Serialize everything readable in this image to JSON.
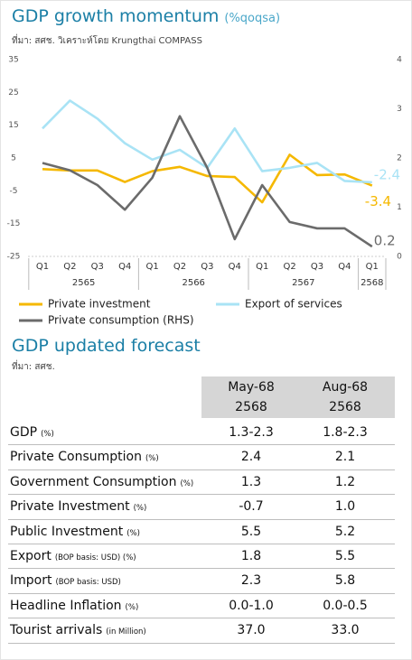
{
  "chart_data": {
    "type": "line",
    "title": "GDP growth momentum",
    "subtitle": "(%qoqsa)",
    "source": "ที่มา: สศช. วิเคราะห์โดย Krungthai COMPASS",
    "groups": [
      {
        "label": "2565",
        "categories": [
          "Q1",
          "Q2",
          "Q3",
          "Q4"
        ]
      },
      {
        "label": "2566",
        "categories": [
          "Q1",
          "Q2",
          "Q3",
          "Q4"
        ]
      },
      {
        "label": "2567",
        "categories": [
          "Q1",
          "Q2",
          "Q3",
          "Q4"
        ]
      },
      {
        "label": "2568",
        "categories": [
          "Q1"
        ]
      }
    ],
    "ylim": [
      -25,
      35
    ],
    "yticks": [
      -25,
      -15,
      -5,
      5,
      15,
      25,
      35
    ],
    "y2lim": [
      0,
      4
    ],
    "y2ticks": [
      0,
      1,
      2,
      3,
      4
    ],
    "grid": false,
    "series": [
      {
        "name": "Private investment",
        "color": "#f5b800",
        "values": [
          1.6,
          1.2,
          1.2,
          -2.3,
          1.0,
          2.3,
          -0.5,
          -0.8,
          -8.5,
          6.0,
          -0.2,
          0.0,
          -3.4
        ],
        "value_labels": [
          null,
          null,
          null,
          null,
          null,
          null,
          null,
          null,
          null,
          null,
          null,
          null,
          "-3.4"
        ]
      },
      {
        "name": "Export of services",
        "color": "#a9e3f5",
        "values": [
          14,
          22.5,
          17,
          9.5,
          4.5,
          7.5,
          2,
          14,
          1,
          2,
          3.5,
          -2,
          -2.4
        ],
        "value_labels": [
          null,
          null,
          null,
          null,
          null,
          null,
          null,
          null,
          null,
          null,
          null,
          null,
          "-2.4"
        ]
      },
      {
        "name": "Private consumption (RHS)",
        "color": "#6b6b6b",
        "axis": "y2",
        "values": [
          1.9,
          1.75,
          1.45,
          0.95,
          1.6,
          2.85,
          1.8,
          0.35,
          1.45,
          0.7,
          0.57,
          0.57,
          0.2
        ],
        "value_labels": [
          null,
          null,
          null,
          null,
          null,
          null,
          null,
          null,
          null,
          null,
          null,
          null,
          "0.2"
        ]
      }
    ]
  },
  "table": {
    "title": "GDP updated forecast",
    "source": "ที่มา: สศช.",
    "columns": [
      {
        "period": "May-68",
        "year": "2568"
      },
      {
        "period": "Aug-68",
        "year": "2568"
      }
    ],
    "rows": [
      {
        "label": "GDP",
        "unit": "(%)",
        "values": [
          "1.3-2.3",
          "1.8-2.3"
        ]
      },
      {
        "label": "Private Consumption",
        "unit": "(%)",
        "values": [
          "2.4",
          "2.1"
        ]
      },
      {
        "label": "Government Consumption",
        "unit": "(%)",
        "values": [
          "1.3",
          "1.2"
        ]
      },
      {
        "label": "Private Investment",
        "unit": "(%)",
        "values": [
          "-0.7",
          "1.0"
        ]
      },
      {
        "label": "Public Investment",
        "unit": "(%)",
        "values": [
          "5.5",
          "5.2"
        ]
      },
      {
        "label": "Export",
        "unit": "(BOP basis: USD) (%)",
        "values": [
          "1.8",
          "5.5"
        ]
      },
      {
        "label": "Import",
        "unit": "(BOP basis: USD)",
        "values": [
          "2.3",
          "5.8"
        ]
      },
      {
        "label": "Headline Inflation",
        "unit": "(%)",
        "values": [
          "0.0-1.0",
          "0.0-0.5"
        ]
      },
      {
        "label": "Tourist arrivals",
        "unit": "(in Million)",
        "values": [
          "37.0",
          "33.0"
        ]
      }
    ]
  }
}
